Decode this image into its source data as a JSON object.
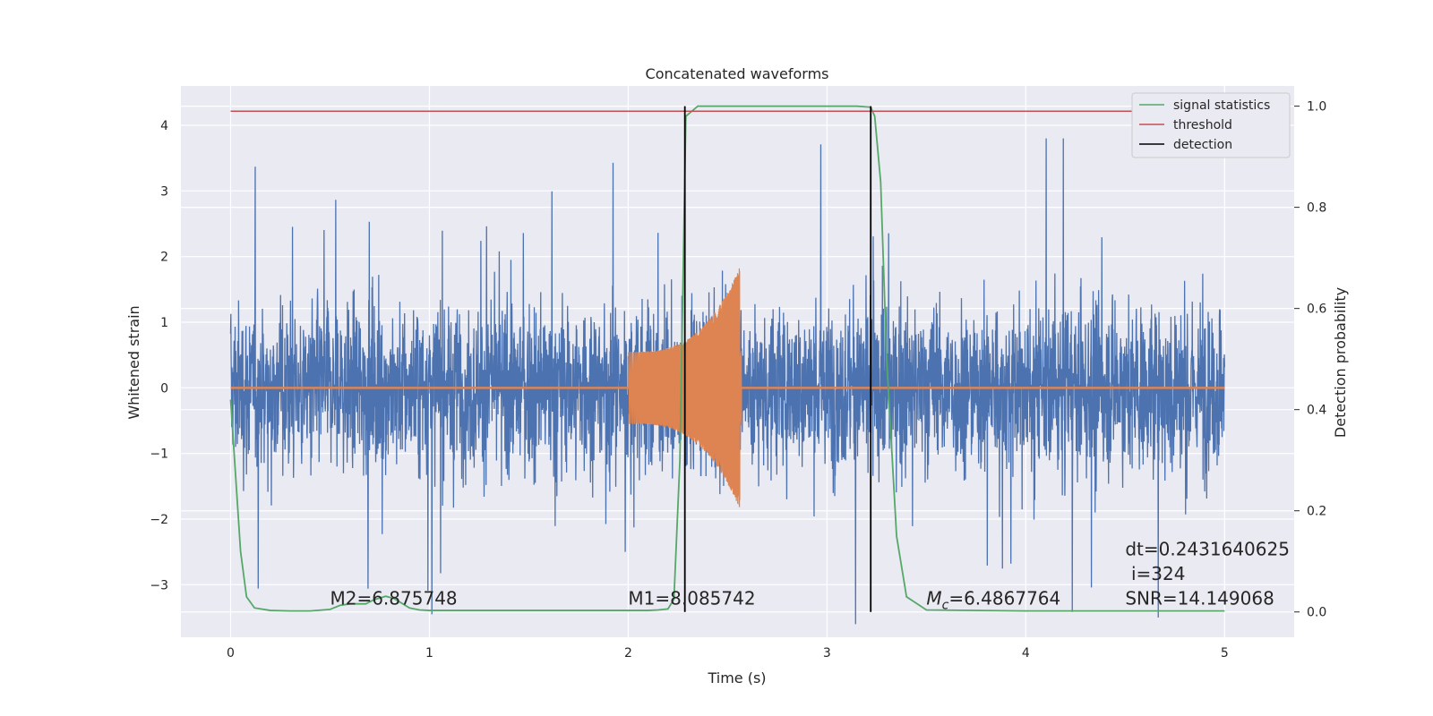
{
  "chart_data": {
    "type": "line",
    "title": "Concatenated waveforms",
    "xlabel": "Time (s)",
    "ylabel": "Whitened strain",
    "y2label": "Detection probability",
    "xlim": [
      -0.25,
      5.35
    ],
    "ylim": [
      -3.8,
      4.6
    ],
    "y2lim": [
      -0.05,
      1.04
    ],
    "xticks": [
      0,
      1,
      2,
      3,
      4,
      5
    ],
    "yticks": [
      -3,
      -2,
      -1,
      0,
      1,
      2,
      3,
      4
    ],
    "y2ticks": [
      0.0,
      0.2,
      0.4,
      0.6,
      0.8,
      1.0
    ],
    "grid": true,
    "legend_position": "upper right",
    "legend": [
      {
        "label": "signal statistics",
        "color": "#55a868"
      },
      {
        "label": "threshold",
        "color": "#c44e52"
      },
      {
        "label": "detection",
        "color": "#000000"
      }
    ],
    "series": [
      {
        "name": "",
        "kind": "whitened noisy strain",
        "color": "#4c72b0",
        "x_range": [
          0,
          5
        ],
        "approx_amplitude": 1.2,
        "peak_range": [
          -3.6,
          3.8
        ]
      },
      {
        "name": "",
        "kind": "injected chirp",
        "color": "#dd8452",
        "x_range": [
          2.0,
          2.57
        ],
        "amplitude_start": 0.55,
        "amplitude_end": 1.9
      },
      {
        "name": "signal statistics",
        "axis": "right",
        "color": "#55a868",
        "x": [
          0,
          0.02,
          0.05,
          0.08,
          0.12,
          0.2,
          0.3,
          0.4,
          0.5,
          0.55,
          0.6,
          0.68,
          0.72,
          0.78,
          0.82,
          0.9,
          0.95,
          1.0,
          1.5,
          2.0,
          2.1,
          2.15,
          2.2,
          2.23,
          2.26,
          2.29,
          2.35,
          3.0,
          3.15,
          3.22,
          3.24,
          3.27,
          3.3,
          3.35,
          3.4,
          3.5,
          4.0,
          4.5,
          5.0
        ],
        "y": [
          0.42,
          0.3,
          0.12,
          0.03,
          0.008,
          0.003,
          0.002,
          0.002,
          0.005,
          0.013,
          0.016,
          0.016,
          0.024,
          0.031,
          0.027,
          0.008,
          0.004,
          0.003,
          0.003,
          0.003,
          0.003,
          0.004,
          0.006,
          0.025,
          0.3,
          0.98,
          1.0,
          1.0,
          1.0,
          0.998,
          0.98,
          0.85,
          0.5,
          0.15,
          0.03,
          0.004,
          0.002,
          0.002,
          0.002
        ]
      },
      {
        "name": "threshold",
        "axis": "right",
        "color": "#c44e52",
        "x": [
          0,
          5
        ],
        "y": [
          0.99,
          0.99
        ]
      },
      {
        "name": "detection",
        "axis": "right",
        "color": "#000000",
        "segments": [
          {
            "x": 2.285,
            "y": [
              0,
              1.0
            ]
          },
          {
            "x": 3.22,
            "y": [
              0,
              1.0
            ]
          }
        ]
      }
    ],
    "annotations": [
      {
        "id": "m2",
        "text": "M2=6.875748",
        "x": 0.5,
        "y": -3.3
      },
      {
        "id": "m1",
        "text": "M1=8.085742",
        "x": 2.0,
        "y": -3.3
      },
      {
        "id": "mc",
        "prefix": "M",
        "sub": "c",
        "value": "=6.4867764",
        "x": 3.5,
        "y": -3.3
      },
      {
        "id": "dt",
        "text": "dt=0.2431640625",
        "x": 4.5,
        "y": -2.55
      },
      {
        "id": "i",
        "text": "i=324",
        "x": 4.53,
        "y": -2.93
      },
      {
        "id": "snr",
        "text": "SNR=14.149068",
        "x": 4.5,
        "y": -3.3
      }
    ]
  }
}
